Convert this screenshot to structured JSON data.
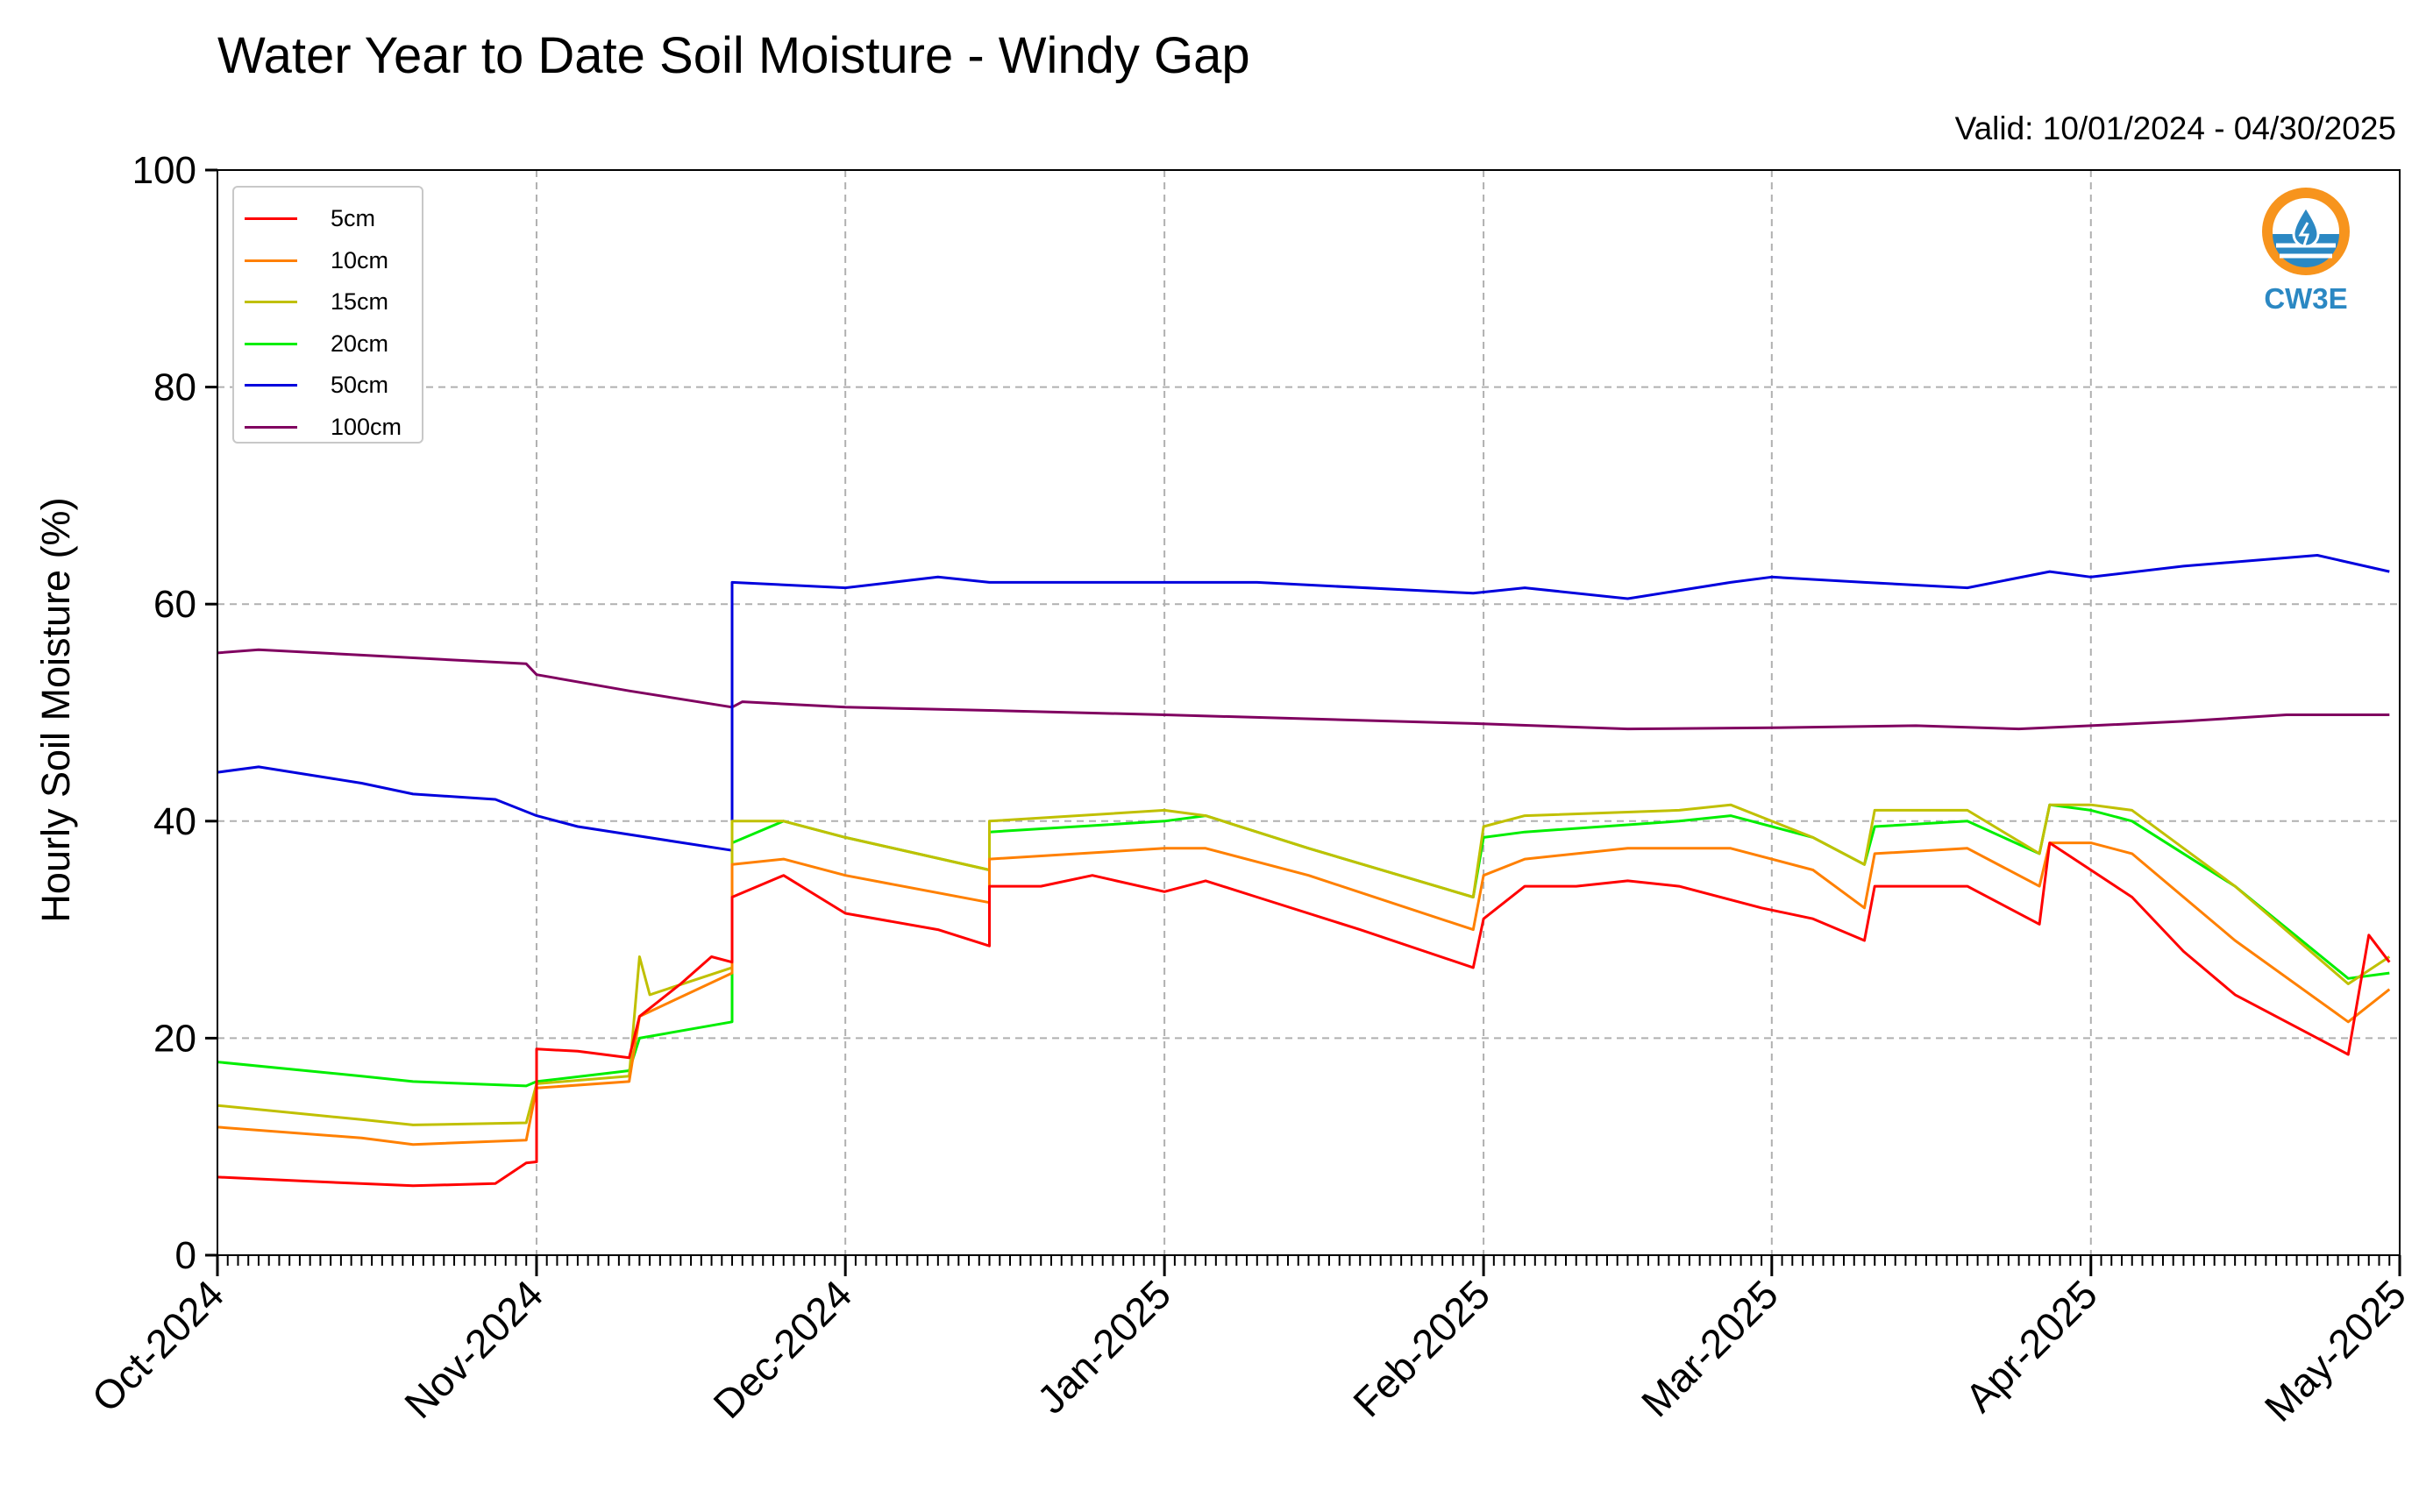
{
  "chart_data": {
    "type": "line",
    "title": "Water Year to Date Soil Moisture - Windy Gap",
    "subtitle": "Valid: 10/01/2024 - 04/30/2025",
    "ylabel": "Hourly Soil Moisture (%)",
    "xlabel": "",
    "ylim": [
      0,
      100
    ],
    "yticks": [
      0,
      20,
      40,
      60,
      80,
      100
    ],
    "xlim": [
      "2024-10-01",
      "2025-05-01"
    ],
    "xticks": [
      "Oct-2024",
      "Nov-2024",
      "Dec-2024",
      "Jan-2025",
      "Feb-2025",
      "Mar-2025",
      "Apr-2025",
      "May-2025"
    ],
    "grid": true,
    "legend_position": "upper-left",
    "series": [
      {
        "name": "5cm",
        "color": "#ff0000",
        "points": [
          [
            "2024-10-01",
            7.2
          ],
          [
            "2024-10-10",
            6.8
          ],
          [
            "2024-10-20",
            6.4
          ],
          [
            "2024-10-28",
            6.6
          ],
          [
            "2024-10-31",
            8.5
          ],
          [
            "2024-11-01",
            8.6
          ],
          [
            "2024-11-01",
            19
          ],
          [
            "2024-11-05",
            18.8
          ],
          [
            "2024-11-10",
            18.2
          ],
          [
            "2024-11-11",
            22
          ],
          [
            "2024-11-15",
            25
          ],
          [
            "2024-11-18",
            27.5
          ],
          [
            "2024-11-20",
            27
          ],
          [
            "2024-11-20",
            33
          ],
          [
            "2024-11-25",
            35
          ],
          [
            "2024-12-01",
            31.5
          ],
          [
            "2024-12-10",
            30
          ],
          [
            "2024-12-15",
            28.5
          ],
          [
            "2024-12-15",
            34
          ],
          [
            "2024-12-20",
            34
          ],
          [
            "2024-12-25",
            35
          ],
          [
            "2025-01-01",
            33.5
          ],
          [
            "2025-01-05",
            34.5
          ],
          [
            "2025-01-10",
            33
          ],
          [
            "2025-01-20",
            30
          ],
          [
            "2025-01-31",
            26.5
          ],
          [
            "2025-02-01",
            31
          ],
          [
            "2025-02-05",
            34
          ],
          [
            "2025-02-10",
            34
          ],
          [
            "2025-02-15",
            34.5
          ],
          [
            "2025-02-20",
            34
          ],
          [
            "2025-02-28",
            32
          ],
          [
            "2025-03-05",
            31
          ],
          [
            "2025-03-10",
            29
          ],
          [
            "2025-03-11",
            34
          ],
          [
            "2025-03-20",
            34
          ],
          [
            "2025-03-27",
            30.5
          ],
          [
            "2025-03-28",
            38
          ],
          [
            "2025-04-05",
            33
          ],
          [
            "2025-04-10",
            28
          ],
          [
            "2025-04-15",
            24
          ],
          [
            "2025-04-22",
            20.5
          ],
          [
            "2025-04-26",
            18.5
          ],
          [
            "2025-04-28",
            29.5
          ],
          [
            "2025-04-30",
            27
          ]
        ]
      },
      {
        "name": "10cm",
        "color": "#ff8000",
        "points": [
          [
            "2024-10-01",
            11.8
          ],
          [
            "2024-10-15",
            10.8
          ],
          [
            "2024-10-20",
            10.2
          ],
          [
            "2024-10-31",
            10.6
          ],
          [
            "2024-11-01",
            15.4
          ],
          [
            "2024-11-10",
            16
          ],
          [
            "2024-11-11",
            22
          ],
          [
            "2024-11-20",
            26
          ],
          [
            "2024-11-20",
            36
          ],
          [
            "2024-11-25",
            36.5
          ],
          [
            "2024-12-01",
            35
          ],
          [
            "2024-12-15",
            32.5
          ],
          [
            "2024-12-15",
            36.5
          ],
          [
            "2025-01-01",
            37.5
          ],
          [
            "2025-01-05",
            37.5
          ],
          [
            "2025-01-15",
            35
          ],
          [
            "2025-01-31",
            30
          ],
          [
            "2025-02-01",
            35
          ],
          [
            "2025-02-05",
            36.5
          ],
          [
            "2025-02-15",
            37.5
          ],
          [
            "2025-02-25",
            37.5
          ],
          [
            "2025-03-05",
            35.5
          ],
          [
            "2025-03-10",
            32
          ],
          [
            "2025-03-11",
            37
          ],
          [
            "2025-03-20",
            37.5
          ],
          [
            "2025-03-27",
            34
          ],
          [
            "2025-03-28",
            38
          ],
          [
            "2025-04-01",
            38
          ],
          [
            "2025-04-05",
            37
          ],
          [
            "2025-04-15",
            29
          ],
          [
            "2025-04-26",
            21.5
          ],
          [
            "2025-04-30",
            24.5
          ]
        ]
      },
      {
        "name": "15cm",
        "color": "#c0c000",
        "points": [
          [
            "2024-10-01",
            13.8
          ],
          [
            "2024-10-15",
            12.5
          ],
          [
            "2024-10-20",
            12
          ],
          [
            "2024-10-31",
            12.2
          ],
          [
            "2024-11-01",
            15.8
          ],
          [
            "2024-11-10",
            16.5
          ],
          [
            "2024-11-11",
            27.5
          ],
          [
            "2024-11-12",
            24
          ],
          [
            "2024-11-20",
            26.5
          ],
          [
            "2024-11-20",
            40
          ],
          [
            "2024-11-25",
            40
          ],
          [
            "2024-12-01",
            38.5
          ],
          [
            "2024-12-15",
            35.5
          ],
          [
            "2024-12-15",
            40
          ],
          [
            "2025-01-01",
            41
          ],
          [
            "2025-01-05",
            40.5
          ],
          [
            "2025-01-15",
            37.5
          ],
          [
            "2025-01-31",
            33
          ],
          [
            "2025-02-01",
            39.5
          ],
          [
            "2025-02-05",
            40.5
          ],
          [
            "2025-02-20",
            41
          ],
          [
            "2025-02-25",
            41.5
          ],
          [
            "2025-03-05",
            38.5
          ],
          [
            "2025-03-10",
            36
          ],
          [
            "2025-03-11",
            41
          ],
          [
            "2025-03-20",
            41
          ],
          [
            "2025-03-27",
            37
          ],
          [
            "2025-03-28",
            41.5
          ],
          [
            "2025-04-01",
            41.5
          ],
          [
            "2025-04-05",
            41
          ],
          [
            "2025-04-15",
            34
          ],
          [
            "2025-04-26",
            25
          ],
          [
            "2025-04-30",
            27.5
          ]
        ]
      },
      {
        "name": "20cm",
        "color": "#00ee00",
        "points": [
          [
            "2024-10-01",
            17.8
          ],
          [
            "2024-10-15",
            16.5
          ],
          [
            "2024-10-20",
            16
          ],
          [
            "2024-10-31",
            15.6
          ],
          [
            "2024-11-01",
            16
          ],
          [
            "2024-11-10",
            17
          ],
          [
            "2024-11-11",
            20
          ],
          [
            "2024-11-20",
            21.5
          ],
          [
            "2024-11-20",
            38
          ],
          [
            "2024-11-25",
            40
          ],
          [
            "2024-12-01",
            38.5
          ],
          [
            "2024-12-15",
            35.5
          ],
          [
            "2024-12-15",
            39
          ],
          [
            "2025-01-01",
            40
          ],
          [
            "2025-01-05",
            40.5
          ],
          [
            "2025-01-15",
            37.5
          ],
          [
            "2025-01-31",
            33
          ],
          [
            "2025-02-01",
            38.5
          ],
          [
            "2025-02-05",
            39
          ],
          [
            "2025-02-20",
            40
          ],
          [
            "2025-02-25",
            40.5
          ],
          [
            "2025-03-05",
            38.5
          ],
          [
            "2025-03-10",
            36
          ],
          [
            "2025-03-11",
            39.5
          ],
          [
            "2025-03-20",
            40
          ],
          [
            "2025-03-27",
            37
          ],
          [
            "2025-03-28",
            41.5
          ],
          [
            "2025-04-01",
            41
          ],
          [
            "2025-04-05",
            40
          ],
          [
            "2025-04-15",
            34
          ],
          [
            "2025-04-26",
            25.5
          ],
          [
            "2025-04-30",
            26
          ]
        ]
      },
      {
        "name": "50cm",
        "color": "#0000dd",
        "points": [
          [
            "2024-10-01",
            44.5
          ],
          [
            "2024-10-05",
            45
          ],
          [
            "2024-10-15",
            43.5
          ],
          [
            "2024-10-20",
            42.5
          ],
          [
            "2024-10-28",
            42
          ],
          [
            "2024-11-01",
            40.5
          ],
          [
            "2024-11-05",
            39.5
          ],
          [
            "2024-11-20",
            37.3
          ],
          [
            "2024-11-20",
            62
          ],
          [
            "2024-12-01",
            61.5
          ],
          [
            "2024-12-10",
            62.5
          ],
          [
            "2024-12-15",
            62
          ],
          [
            "2025-01-01",
            62
          ],
          [
            "2025-01-10",
            62
          ],
          [
            "2025-01-31",
            61
          ],
          [
            "2025-02-05",
            61.5
          ],
          [
            "2025-02-15",
            60.5
          ],
          [
            "2025-02-25",
            62
          ],
          [
            "2025-03-01",
            62.5
          ],
          [
            "2025-03-10",
            62
          ],
          [
            "2025-03-20",
            61.5
          ],
          [
            "2025-03-28",
            63
          ],
          [
            "2025-04-01",
            62.5
          ],
          [
            "2025-04-10",
            63.5
          ],
          [
            "2025-04-23",
            64.5
          ],
          [
            "2025-04-30",
            63
          ]
        ]
      },
      {
        "name": "100cm",
        "color": "#800060",
        "points": [
          [
            "2024-10-01",
            55.5
          ],
          [
            "2024-10-05",
            55.8
          ],
          [
            "2024-10-15",
            55.3
          ],
          [
            "2024-10-31",
            54.5
          ],
          [
            "2024-11-01",
            53.5
          ],
          [
            "2024-11-10",
            52
          ],
          [
            "2024-11-20",
            50.5
          ],
          [
            "2024-11-21",
            51
          ],
          [
            "2024-12-01",
            50.5
          ],
          [
            "2024-12-15",
            50.2
          ],
          [
            "2025-01-01",
            49.8
          ],
          [
            "2025-01-31",
            49
          ],
          [
            "2025-02-15",
            48.5
          ],
          [
            "2025-03-01",
            48.6
          ],
          [
            "2025-03-15",
            48.8
          ],
          [
            "2025-03-25",
            48.5
          ],
          [
            "2025-04-01",
            48.8
          ],
          [
            "2025-04-10",
            49.2
          ],
          [
            "2025-04-20",
            49.8
          ],
          [
            "2025-04-30",
            49.8
          ]
        ]
      }
    ]
  },
  "logo": {
    "text": "CW3E",
    "colors": {
      "orange": "#f7941d",
      "blue": "#2b88c3"
    }
  }
}
